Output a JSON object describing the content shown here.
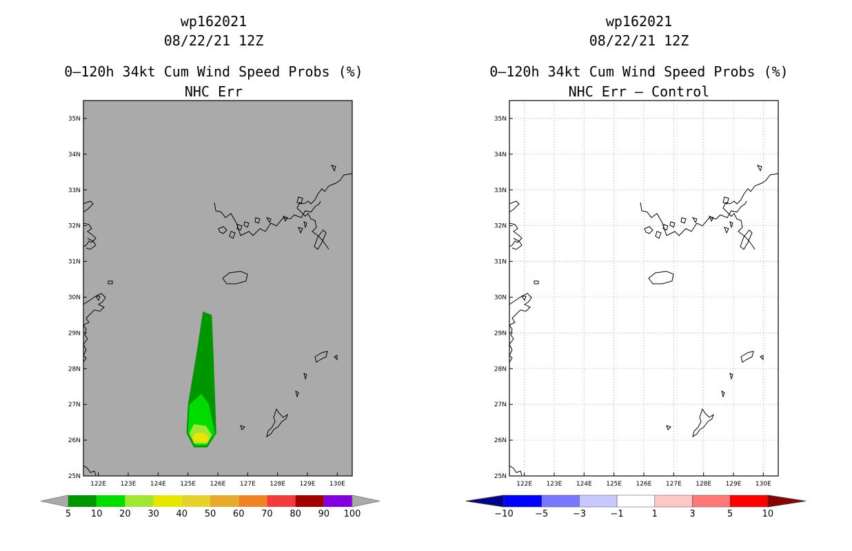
{
  "panels": [
    {
      "storm_id": "wp162021",
      "datetime": "08/22/21 12Z",
      "product": "0–120h 34kt Cum Wind Speed Probs (%)",
      "subtitle": "NHC Err"
    },
    {
      "storm_id": "wp162021",
      "datetime": "08/22/21 12Z",
      "product": "0–120h 34kt Cum Wind Speed Probs (%)",
      "subtitle": "NHC Err – Control"
    }
  ],
  "map": {
    "lon_range": [
      121.5,
      130.5
    ],
    "lat_range": [
      25,
      35.5
    ],
    "lon_ticks": [
      "122E",
      "123E",
      "124E",
      "125E",
      "126E",
      "127E",
      "128E",
      "129E",
      "130E"
    ],
    "lat_ticks": [
      "25N",
      "26N",
      "27N",
      "28N",
      "29N",
      "30N",
      "31N",
      "32N",
      "33N",
      "34N",
      "35N"
    ]
  },
  "colorbars": {
    "probability": {
      "labels": [
        "5",
        "10",
        "20",
        "30",
        "40",
        "50",
        "60",
        "70",
        "80",
        "90",
        "100"
      ],
      "colors": [
        "#009600",
        "#00dc00",
        "#a0e632",
        "#e6e600",
        "#e6d22d",
        "#e6aa2d",
        "#f08228",
        "#f03c3c",
        "#a00000",
        "#8200dc"
      ],
      "end_color": "#aaaaaa"
    },
    "difference": {
      "labels": [
        "−10",
        "−5",
        "−3",
        "−1",
        "1",
        "3",
        "5",
        "10"
      ],
      "colors": [
        "#0000ff",
        "#7878ff",
        "#c8c8ff",
        "#ffffff",
        "#ffc8c8",
        "#ff7878",
        "#ff0000"
      ],
      "end_low": "#00008c",
      "end_high": "#8c0000"
    }
  },
  "probability_field": {
    "levels": [
      {
        "min": 5,
        "color": "#009600",
        "polygon": [
          [
            125.2,
            25.8
          ],
          [
            125.65,
            25.8
          ],
          [
            125.95,
            26.2
          ],
          [
            125.85,
            28.5
          ],
          [
            125.8,
            29.5
          ],
          [
            125.5,
            29.6
          ],
          [
            125.3,
            28.5
          ],
          [
            125.0,
            27.0
          ],
          [
            124.95,
            26.2
          ]
        ]
      },
      {
        "min": 10,
        "color": "#00dc00",
        "polygon": [
          [
            125.25,
            25.85
          ],
          [
            125.6,
            25.85
          ],
          [
            125.9,
            26.2
          ],
          [
            125.7,
            27.0
          ],
          [
            125.45,
            27.3
          ],
          [
            125.05,
            27.0
          ],
          [
            125.0,
            26.2
          ]
        ]
      },
      {
        "min": 20,
        "color": "#a0e632",
        "polygon": [
          [
            125.2,
            25.9
          ],
          [
            125.65,
            25.9
          ],
          [
            125.8,
            26.15
          ],
          [
            125.6,
            26.4
          ],
          [
            125.2,
            26.45
          ],
          [
            125.05,
            26.2
          ]
        ]
      },
      {
        "min": 30,
        "color": "#e6e600",
        "polygon": [
          [
            125.25,
            25.95
          ],
          [
            125.6,
            25.95
          ],
          [
            125.72,
            26.05
          ],
          [
            125.55,
            26.2
          ],
          [
            125.25,
            26.2
          ],
          [
            125.15,
            26.05
          ]
        ]
      }
    ]
  }
}
